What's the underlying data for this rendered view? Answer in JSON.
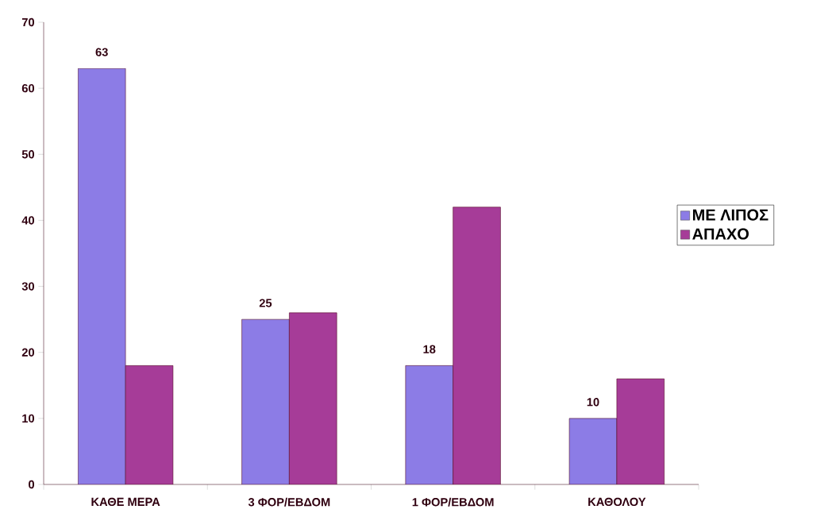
{
  "chart_data": {
    "type": "bar",
    "categories": [
      "ΚΑΘΕ ΜΕΡΑ",
      "3 ΦΟΡ/ΕΒΔΟΜ",
      "1 ΦΟΡ/ΕΒΔΟΜ",
      "ΚΑΘΟΛΟΥ"
    ],
    "series": [
      {
        "name": "ΜΕ ΛΙΠΟΣ",
        "color": "#8c7ce6",
        "values": [
          63,
          25,
          18,
          10
        ],
        "value_labels": [
          "63",
          "25",
          "18",
          "10"
        ]
      },
      {
        "name": "ΑΠΑΧΟ",
        "color": "#a63c98",
        "values": [
          18,
          26,
          42,
          16
        ]
      }
    ],
    "ylim": [
      0,
      70
    ],
    "yticks": [
      0,
      10,
      20,
      30,
      40,
      50,
      60,
      70
    ],
    "grid": false,
    "legend": "right"
  }
}
